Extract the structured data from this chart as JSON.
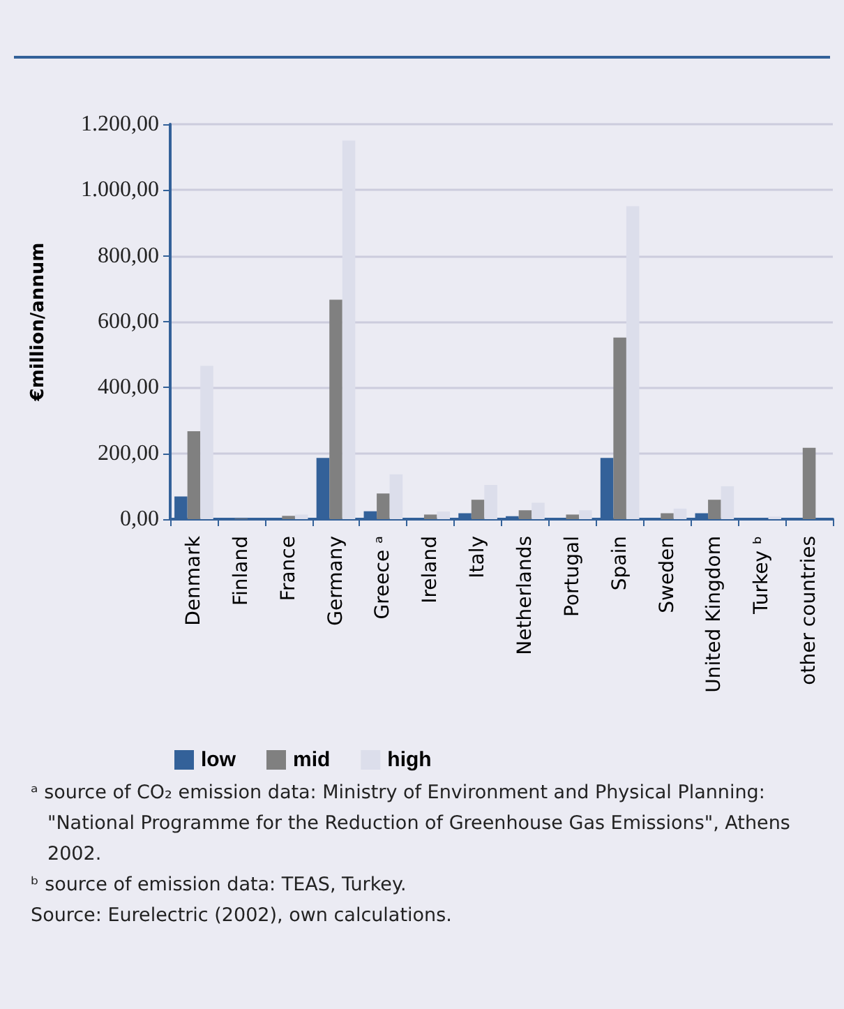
{
  "chart_data": {
    "type": "bar",
    "ylabel": "€million/annum",
    "categories": [
      "Denmark",
      "Finland",
      "France",
      "Germany",
      "Greece ᵃ",
      "Ireland",
      "Italy",
      "Netherlands",
      "Portugal",
      "Spain",
      "Sweden",
      "United Kingdom",
      "Turkey ᵇ",
      "other countries"
    ],
    "series": [
      {
        "name": "low",
        "color": "#336199",
        "values": [
          69,
          3,
          2,
          186,
          24,
          2,
          18,
          9,
          2,
          186,
          2,
          18,
          1,
          0
        ]
      },
      {
        "name": "mid",
        "color": "#808080",
        "values": [
          267,
          2,
          10,
          667,
          78,
          14,
          59,
          27,
          14,
          552,
          18,
          59,
          null,
          217
        ]
      },
      {
        "name": "high",
        "color": "#dcdeeb",
        "values": [
          466,
          null,
          14,
          1150,
          136,
          23,
          104,
          50,
          27,
          951,
          32,
          100,
          8,
          0
        ]
      }
    ],
    "ylim": [
      0,
      1200
    ],
    "yticks": [
      {
        "value": 0,
        "label": "0,00"
      },
      {
        "value": 200,
        "label": "200,00"
      },
      {
        "value": 400,
        "label": "400,00"
      },
      {
        "value": 600,
        "label": "600,00"
      },
      {
        "value": 800,
        "label": "800,00"
      },
      {
        "value": 1000,
        "label": "1.000,00"
      },
      {
        "value": 1200,
        "label": "1.200,00"
      }
    ],
    "grid": "y",
    "legend": "bottom",
    "annotations": [
      "ᵃ source of CO₂ emission data: Ministry of Environment and Physical Planning: \"National Programme for the Reduction of Greenhouse Gas Emissions\", Athens 2002.",
      "ᵇ source of emission data: TEAS, Turkey.",
      "Source: Eurelectric (2002), own calculations."
    ]
  }
}
